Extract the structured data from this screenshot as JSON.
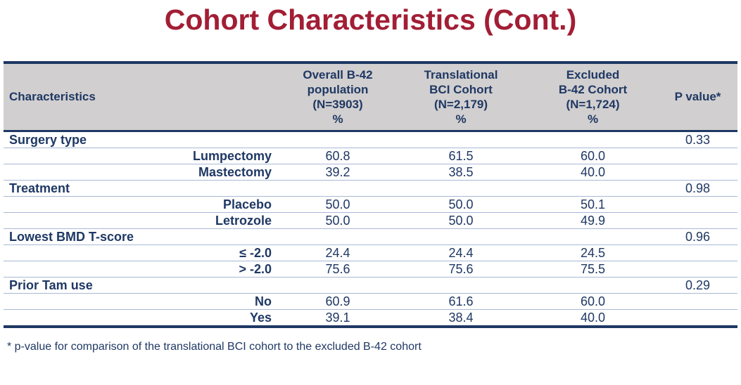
{
  "title": "Cohort Characteristics (Cont.)",
  "footnote": "* p-value for comparison of the translational BCI cohort to the excluded B-42 cohort",
  "colors": {
    "title_red": "#A21E35",
    "text_navy": "#1F3864",
    "header_bg": "#D1CFCF",
    "row_separator": "#A9B8D4"
  },
  "chart_data": {
    "type": "table",
    "title": "Cohort Characteristics (Cont.)",
    "columns": [
      "Characteristics",
      "Overall B-42\npopulation\n(N=3903)\n%",
      "Translational\nBCI Cohort\n(N=2,179)\n%",
      "Excluded\nB-42 Cohort\n(N=1,724)\n%",
      "P value*"
    ],
    "rows": [
      {
        "type": "section",
        "label": "Surgery type",
        "values": [
          "",
          "",
          ""
        ],
        "pvalue": "0.33"
      },
      {
        "type": "item",
        "label": "Lumpectomy",
        "values": [
          "60.8",
          "61.5",
          "60.0"
        ],
        "pvalue": ""
      },
      {
        "type": "item",
        "label": "Mastectomy",
        "values": [
          "39.2",
          "38.5",
          "40.0"
        ],
        "pvalue": ""
      },
      {
        "type": "section",
        "label": "Treatment",
        "values": [
          "",
          "",
          ""
        ],
        "pvalue": "0.98"
      },
      {
        "type": "item",
        "label": "Placebo",
        "values": [
          "50.0",
          "50.0",
          "50.1"
        ],
        "pvalue": ""
      },
      {
        "type": "item",
        "label": "Letrozole",
        "values": [
          "50.0",
          "50.0",
          "49.9"
        ],
        "pvalue": ""
      },
      {
        "type": "section",
        "label": "Lowest BMD T-score",
        "values": [
          "",
          "",
          ""
        ],
        "pvalue": "0.96"
      },
      {
        "type": "item",
        "label": "≤ -2.0",
        "values": [
          "24.4",
          "24.4",
          "24.5"
        ],
        "pvalue": ""
      },
      {
        "type": "item",
        "label": "> -2.0",
        "values": [
          "75.6",
          "75.6",
          "75.5"
        ],
        "pvalue": ""
      },
      {
        "type": "section",
        "label": "Prior Tam use",
        "values": [
          "",
          "",
          ""
        ],
        "pvalue": "0.29"
      },
      {
        "type": "item",
        "label": "No",
        "values": [
          "60.9",
          "61.6",
          "60.0"
        ],
        "pvalue": ""
      },
      {
        "type": "item",
        "label": "Yes",
        "values": [
          "39.1",
          "38.4",
          "40.0"
        ],
        "pvalue": ""
      }
    ]
  }
}
